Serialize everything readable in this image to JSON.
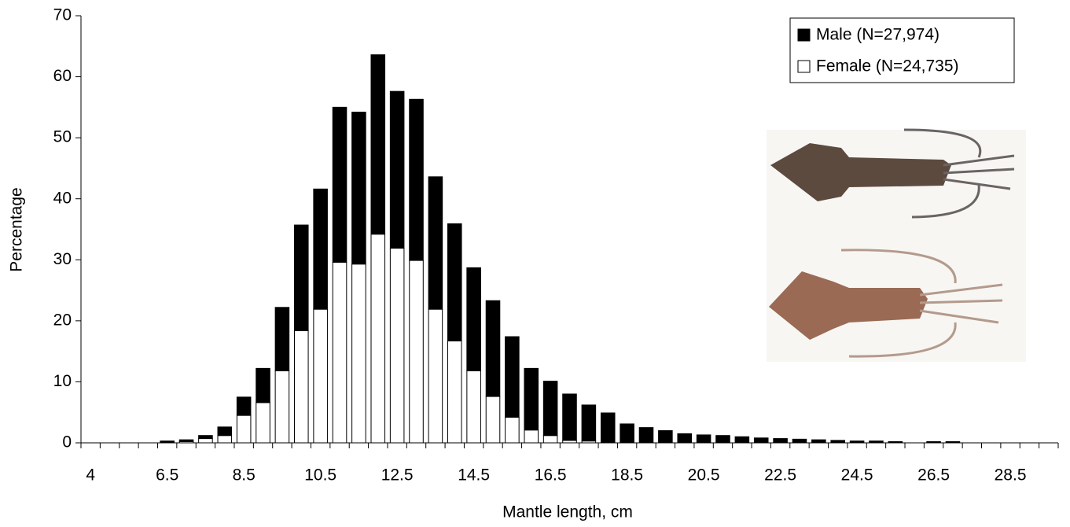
{
  "chart_data": {
    "type": "stacked-bar",
    "x_label": "Mantle length, cm",
    "y_label": "Percentage",
    "categories": [
      "4",
      null,
      null,
      null,
      "6.5",
      null,
      null,
      null,
      "8.5",
      null,
      null,
      null,
      "10.5",
      null,
      null,
      null,
      "12.5",
      null,
      null,
      null,
      "14.5",
      null,
      null,
      null,
      "16.5",
      null,
      null,
      null,
      "18.5",
      null,
      null,
      null,
      "20.5",
      null,
      null,
      null,
      "22.5",
      null,
      null,
      null,
      "24.5",
      null,
      null,
      null,
      "26.5",
      null,
      null,
      null,
      "28.5",
      null,
      null
    ],
    "series": [
      {
        "name": "Female (N=24,735)",
        "color": "#ffffff",
        "values": [
          null,
          null,
          null,
          null,
          0.1,
          0.2,
          0.7,
          1.2,
          4.5,
          6.6,
          11.8,
          18.4,
          21.9,
          29.6,
          29.3,
          34.2,
          31.9,
          29.9,
          21.9,
          16.7,
          11.8,
          7.6,
          4.2,
          2.1,
          1.2,
          0.4,
          0.3,
          0.1,
          null,
          null,
          null,
          null,
          null,
          null,
          null,
          null,
          null,
          null,
          null,
          null,
          null,
          null,
          null,
          null,
          null,
          null,
          null,
          null,
          null,
          null,
          null
        ]
      },
      {
        "name": "Male (N=27,974)",
        "color": "#000000",
        "values": [
          null,
          null,
          null,
          null,
          0.2,
          0.3,
          0.5,
          1.4,
          3.0,
          5.6,
          10.4,
          17.3,
          19.7,
          25.4,
          24.9,
          29.4,
          25.7,
          26.4,
          21.7,
          19.2,
          16.9,
          15.7,
          13.2,
          10.1,
          8.9,
          7.6,
          5.9,
          4.8,
          3.1,
          2.5,
          2.0,
          1.5,
          1.3,
          1.2,
          1.0,
          0.8,
          0.7,
          0.6,
          0.5,
          0.4,
          0.3,
          0.3,
          0.2,
          null,
          0.2,
          0.2,
          null,
          null,
          null,
          null,
          null
        ]
      }
    ],
    "ylim": [
      0,
      70
    ],
    "yticks": [
      0,
      10,
      20,
      30,
      40,
      50,
      60,
      70
    ],
    "legend": "top-right"
  }
}
